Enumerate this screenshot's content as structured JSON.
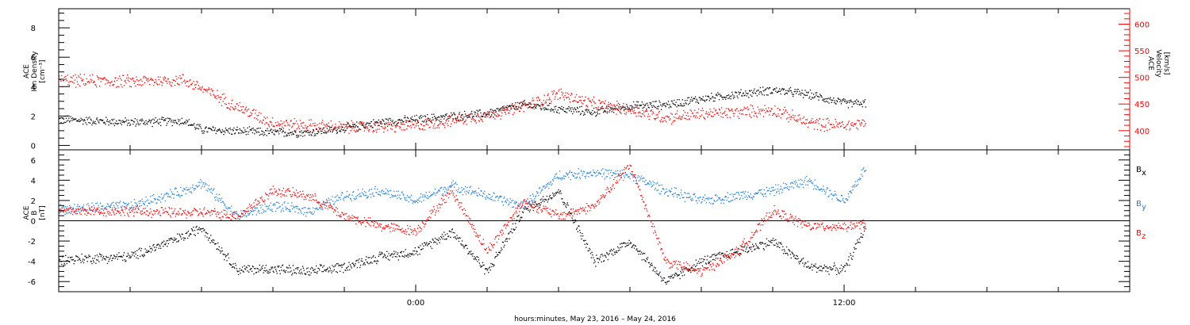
{
  "xlabel": "hours:minutes, May 23, 2016 – May 24, 2016",
  "colors": {
    "black": "#000000",
    "red": "#ff0000",
    "blue": "#1f7fe0"
  },
  "chart_data": [
    {
      "type": "scatter",
      "panel": "density-velocity",
      "ylabel_lines": [
        "ACE",
        "Ion Density",
        "[cm⁻³]"
      ],
      "y2label_lines": [
        "ACE",
        "Velocity",
        "[km/s]"
      ],
      "x_ticks": [
        "0:00",
        "12:00"
      ],
      "x_tick_hours": [
        0,
        12
      ],
      "xlim_hours": [
        -10,
        20
      ],
      "ylim": [
        -0.3,
        9.3
      ],
      "y_ticks": [
        0,
        2,
        4,
        6,
        8
      ],
      "y2lim": [
        364,
        629
      ],
      "y2_ticks": [
        400,
        450,
        500,
        550,
        600
      ],
      "series": [
        {
          "axis": "left",
          "color": "black",
          "x": [
            -10,
            -8,
            -6.5,
            -6,
            -4,
            -3,
            -2,
            -1,
            0,
            1,
            2,
            3,
            4,
            5,
            6,
            7,
            8,
            9,
            10,
            11,
            12,
            12.6
          ],
          "values": [
            1.8,
            1.6,
            1.7,
            1.1,
            0.9,
            0.9,
            1.2,
            1.6,
            1.8,
            2.0,
            2.2,
            2.8,
            2.5,
            2.3,
            2.7,
            2.8,
            3.2,
            3.5,
            3.8,
            3.5,
            2.9,
            2.9
          ]
        },
        {
          "axis": "right",
          "color": "red",
          "x": [
            -10,
            -8,
            -6.5,
            -6,
            -5,
            -4,
            -3,
            -2,
            -1,
            0,
            1,
            2,
            3,
            4,
            5,
            6,
            7,
            8,
            9,
            10,
            11,
            12,
            12.6
          ],
          "values": [
            495,
            493,
            496,
            480,
            445,
            415,
            410,
            407,
            408,
            410,
            420,
            430,
            445,
            470,
            450,
            440,
            425,
            432,
            435,
            440,
            415,
            410,
            415
          ]
        }
      ]
    },
    {
      "type": "scatter",
      "panel": "magnetic-field",
      "ylabel_lines": [
        "ACE",
        "B",
        "[nT]"
      ],
      "x_ticks": [
        "0:00",
        "12:00"
      ],
      "x_tick_hours": [
        0,
        12
      ],
      "xlim_hours": [
        -10,
        20
      ],
      "ylim": [
        -7,
        7
      ],
      "y_ticks": [
        -6,
        -4,
        -2,
        0,
        2,
        4,
        6
      ],
      "zero_line": true,
      "legend": [
        "B",
        "B",
        "B"
      ],
      "legend_subscripts": [
        "x",
        "y",
        "z"
      ],
      "series": [
        {
          "name": "Bx",
          "color": "black",
          "x": [
            -10,
            -8,
            -6.5,
            -6,
            -5,
            -4,
            -3,
            -2,
            -1,
            0,
            1,
            2,
            3,
            4,
            5,
            6,
            7,
            8,
            9,
            10,
            11,
            12,
            12.6
          ],
          "values": [
            -3.8,
            -3.5,
            -1.5,
            -0.6,
            -4.8,
            -4.7,
            -5.0,
            -4.5,
            -3.5,
            -3.0,
            -1.0,
            -5.0,
            1.0,
            3.0,
            -4.0,
            -2.0,
            -6.0,
            -4.0,
            -3.0,
            -2.0,
            -4.5,
            -4.8,
            -0.5
          ]
        },
        {
          "name": "By",
          "color": "blue",
          "x": [
            -10,
            -8,
            -6.5,
            -6,
            -5,
            -4,
            -3,
            -2,
            -1,
            0,
            1,
            2,
            3,
            4,
            5,
            6,
            7,
            8,
            9,
            10,
            11,
            12,
            12.6
          ],
          "values": [
            1.2,
            1.5,
            3.0,
            3.8,
            0.5,
            1.5,
            1.0,
            2.5,
            3.0,
            2.0,
            3.5,
            2.5,
            1.5,
            4.5,
            4.8,
            4.5,
            3.0,
            2.0,
            2.5,
            3.0,
            4.0,
            2.0,
            5.3
          ]
        },
        {
          "name": "Bz",
          "color": "red",
          "x": [
            -10,
            -8,
            -6.5,
            -6,
            -5,
            -4,
            -3,
            -2,
            -1,
            0,
            1,
            2,
            3,
            4,
            5,
            6,
            7,
            8,
            9,
            10,
            11,
            12,
            12.6
          ],
          "values": [
            1.0,
            1.0,
            0.8,
            0.9,
            0.5,
            3.0,
            2.5,
            0.5,
            -0.5,
            -1.0,
            3.0,
            -3.0,
            2.0,
            0.5,
            1.5,
            5.5,
            -4.0,
            -5.0,
            -3.0,
            1.0,
            -0.5,
            -0.5,
            -0.3
          ]
        }
      ]
    }
  ]
}
